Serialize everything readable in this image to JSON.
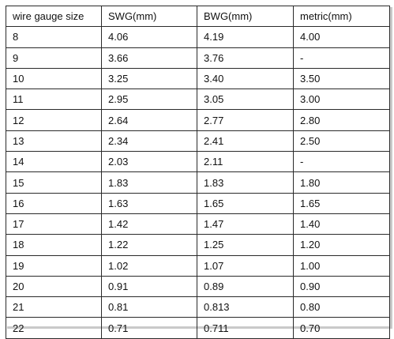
{
  "table": {
    "headers": [
      "wire gauge size",
      "SWG(mm)",
      "BWG(mm)",
      "metric(mm)"
    ],
    "rows": [
      [
        "8",
        "4.06",
        "4.19",
        "4.00"
      ],
      [
        "9",
        "3.66",
        "3.76",
        "-"
      ],
      [
        "10",
        "3.25",
        "3.40",
        "3.50"
      ],
      [
        "11",
        "2.95",
        "3.05",
        "3.00"
      ],
      [
        "12",
        "2.64",
        "2.77",
        "2.80"
      ],
      [
        "13",
        "2.34",
        "2.41",
        "2.50"
      ],
      [
        "14",
        "2.03",
        "2.11",
        "-"
      ],
      [
        "15",
        "1.83",
        "1.83",
        "1.80"
      ],
      [
        "16",
        "1.63",
        "1.65",
        "1.65"
      ],
      [
        "17",
        "1.42",
        "1.47",
        "1.40"
      ],
      [
        "18",
        "1.22",
        "1.25",
        "1.20"
      ],
      [
        "19",
        "1.02",
        "1.07",
        "1.00"
      ],
      [
        "20",
        "0.91",
        "0.89",
        "0.90"
      ],
      [
        "21",
        "0.81",
        "0.813",
        "0.80"
      ],
      [
        "22",
        "0.71",
        "0.711",
        "0.70"
      ]
    ]
  },
  "colors": {
    "border": "#2a2a2a",
    "text": "#111111",
    "shadow": "#c9c9c9"
  }
}
